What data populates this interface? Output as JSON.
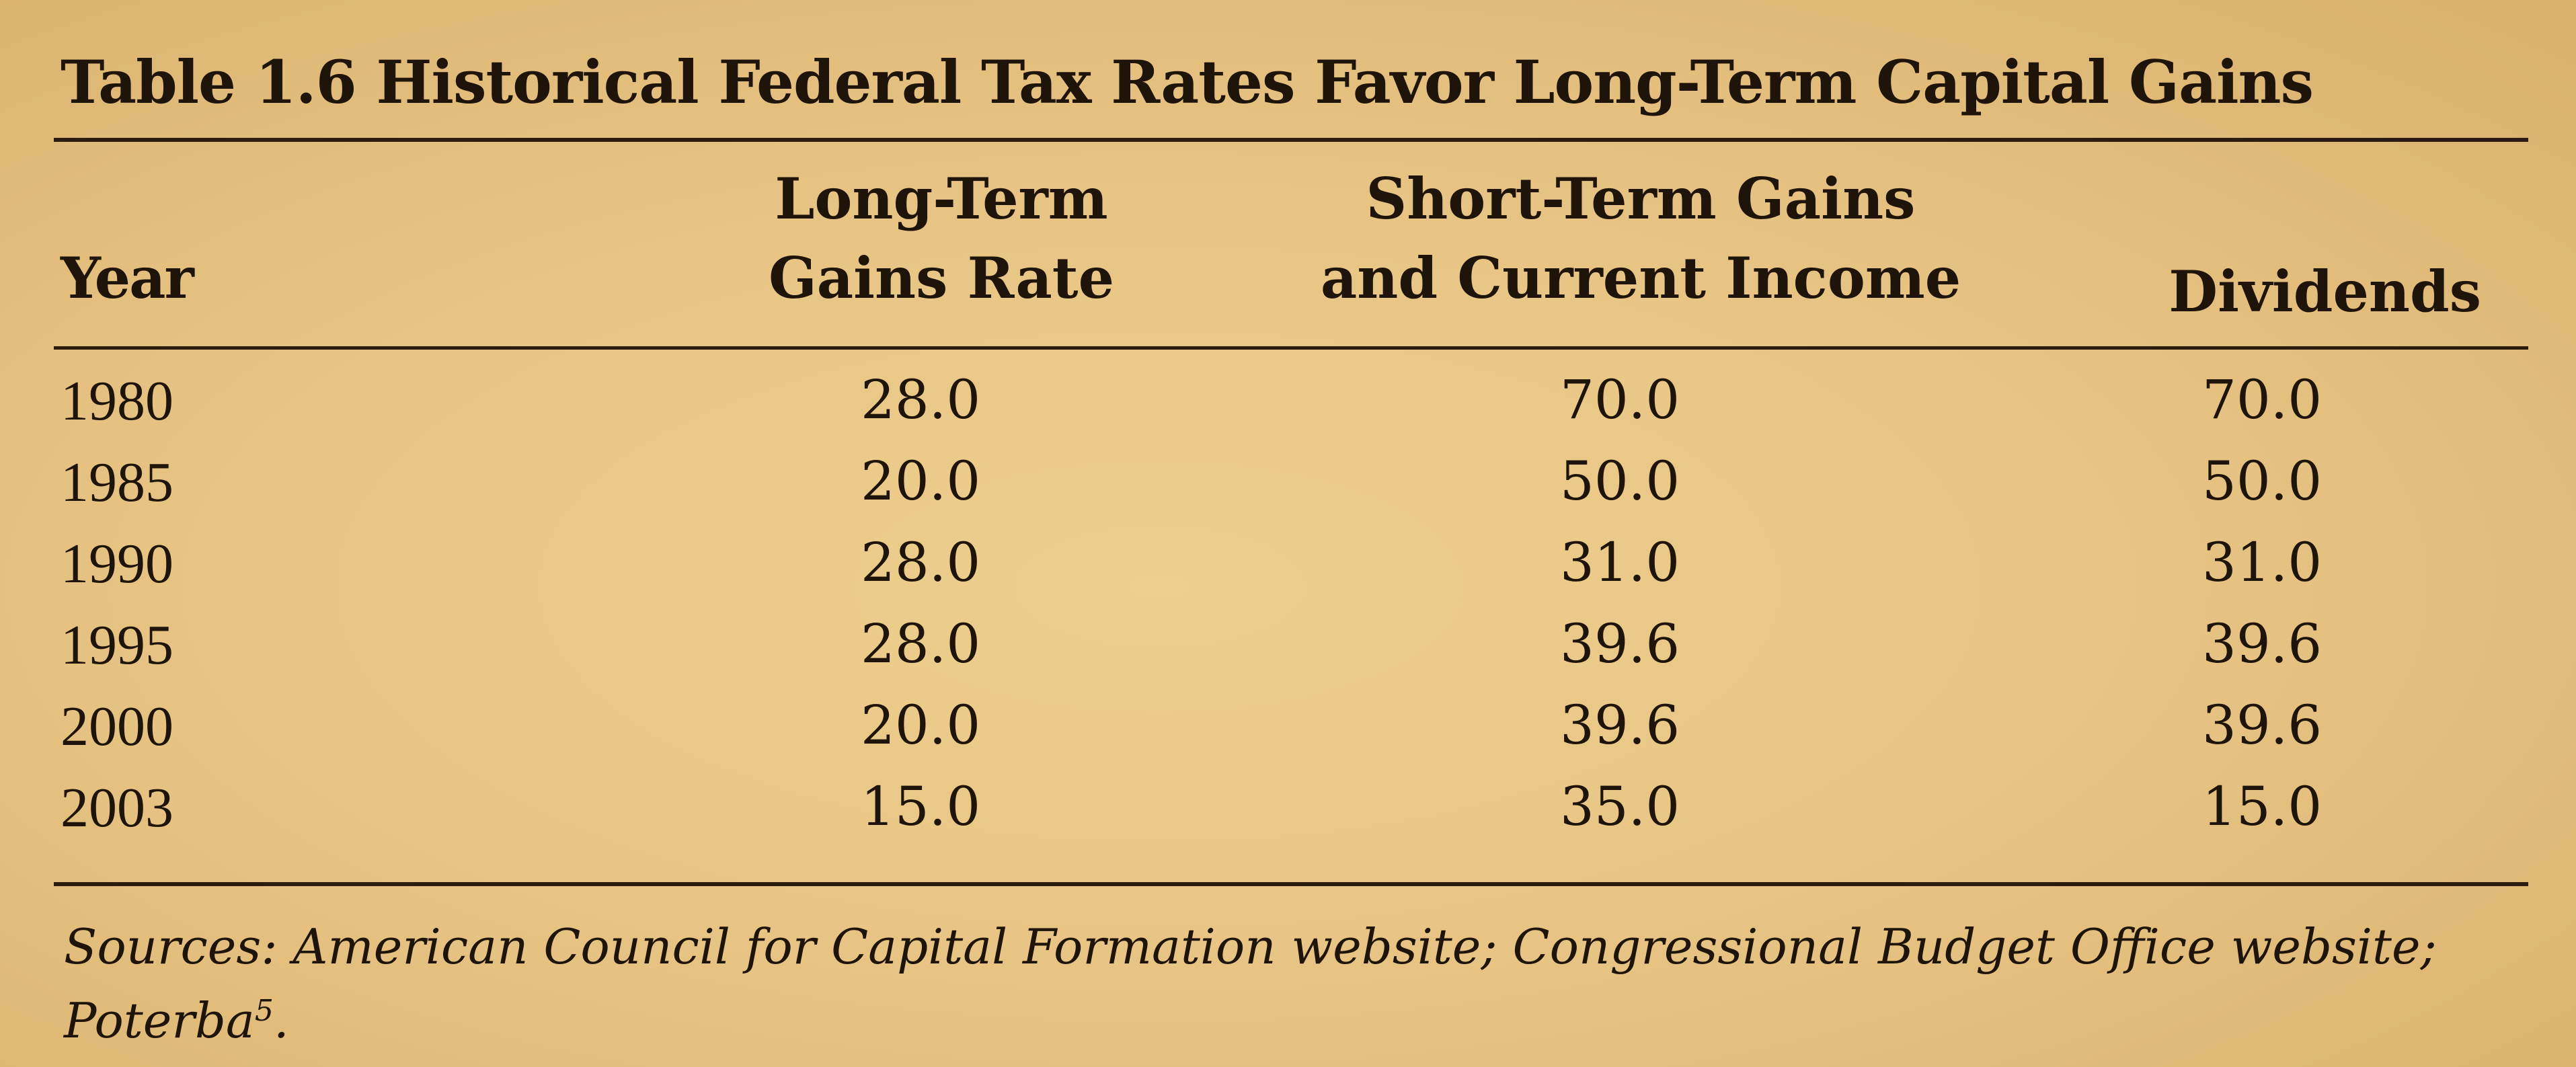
{
  "table": {
    "title": "Table 1.6 Historical Federal Tax Rates Favor Long-Term Capital Gains",
    "headers": {
      "year": "Year",
      "long_term_line1": "Long-Term",
      "long_term_line2": "Gains Rate",
      "short_term_line1": "Short-Term Gains",
      "short_term_line2": "and Current Income",
      "dividends": "Dividends"
    },
    "rows": [
      {
        "year": "1980",
        "long_term": "28.0",
        "short_term": "70.0",
        "dividends": "70.0"
      },
      {
        "year": "1985",
        "long_term": "20.0",
        "short_term": "50.0",
        "dividends": "50.0"
      },
      {
        "year": "1990",
        "long_term": "28.0",
        "short_term": "31.0",
        "dividends": "31.0"
      },
      {
        "year": "1995",
        "long_term": "28.0",
        "short_term": "39.6",
        "dividends": "39.6"
      },
      {
        "year": "2000",
        "long_term": "20.0",
        "short_term": "39.6",
        "dividends": "39.6"
      },
      {
        "year": "2003",
        "long_term": "15.0",
        "short_term": "35.0",
        "dividends": "15.0"
      }
    ],
    "source_label": "Sources:",
    "source_text": "American Council for Capital Formation website; Congressional Budget Office website; Poterba",
    "source_footnote": "5",
    "source_end": "."
  }
}
